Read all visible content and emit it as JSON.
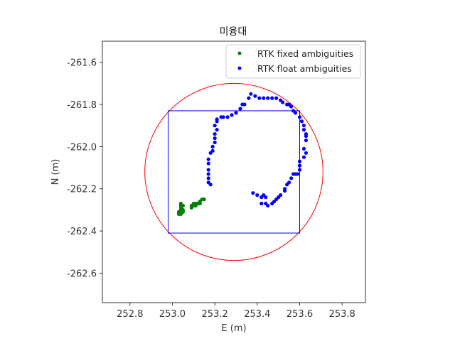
{
  "chart_data": {
    "type": "scatter",
    "title": "미융대",
    "xlabel": "E (m)",
    "ylabel": "N (m)",
    "xlim": [
      252.67,
      253.91
    ],
    "ylim": [
      -262.74,
      -261.5
    ],
    "xticks": [
      252.8,
      253.0,
      253.2,
      253.4,
      253.6,
      253.8
    ],
    "xtick_labels": [
      "252.8",
      "253.0",
      "253.2",
      "253.4",
      "253.6",
      "253.8"
    ],
    "yticks": [
      -261.6,
      -261.8,
      -262.0,
      -262.2,
      -262.4,
      -262.6
    ],
    "ytick_labels": [
      "-261.6",
      "-261.8",
      "-262.0",
      "-262.2",
      "-262.4",
      "-262.6"
    ],
    "grid": false,
    "legend_position": "top-right",
    "circle": {
      "center": [
        253.29,
        -262.12
      ],
      "radius": 0.42,
      "color": "#ff0000"
    },
    "rectangle": {
      "x": [
        252.98,
        253.6
      ],
      "y": [
        -262.41,
        -261.83
      ],
      "color": "#0000ff"
    },
    "series": [
      {
        "name": "RTK fixed ambiguities",
        "color": "#008000",
        "points": [
          [
            253.04,
            -262.27
          ],
          [
            253.04,
            -262.28
          ],
          [
            253.04,
            -262.29
          ],
          [
            253.05,
            -262.28
          ],
          [
            253.04,
            -262.3
          ],
          [
            253.04,
            -262.31
          ],
          [
            253.03,
            -262.32
          ],
          [
            253.04,
            -262.32
          ],
          [
            253.05,
            -262.31
          ],
          [
            253.03,
            -262.31
          ],
          [
            253.05,
            -262.3
          ],
          [
            253.09,
            -262.28
          ],
          [
            253.09,
            -262.29
          ],
          [
            253.1,
            -262.27
          ],
          [
            253.1,
            -262.28
          ],
          [
            253.11,
            -262.28
          ],
          [
            253.11,
            -262.27
          ],
          [
            253.12,
            -262.27
          ],
          [
            253.13,
            -262.27
          ],
          [
            253.13,
            -262.26
          ],
          [
            253.14,
            -262.25
          ],
          [
            253.15,
            -262.25
          ]
        ]
      },
      {
        "name": "RTK float ambiguities",
        "color": "#0000ff",
        "points": [
          [
            253.18,
            -262.18
          ],
          [
            253.17,
            -262.17
          ],
          [
            253.17,
            -262.15
          ],
          [
            253.17,
            -262.13
          ],
          [
            253.17,
            -262.11
          ],
          [
            253.17,
            -262.08
          ],
          [
            253.17,
            -262.06
          ],
          [
            253.18,
            -262.03
          ],
          [
            253.19,
            -262.02
          ],
          [
            253.19,
            -262.0
          ],
          [
            253.2,
            -261.98
          ],
          [
            253.2,
            -261.96
          ],
          [
            253.2,
            -261.94
          ],
          [
            253.21,
            -261.92
          ],
          [
            253.2,
            -261.9
          ],
          [
            253.21,
            -261.88
          ],
          [
            253.21,
            -261.87
          ],
          [
            253.23,
            -261.86
          ],
          [
            253.24,
            -261.86
          ],
          [
            253.26,
            -261.86
          ],
          [
            253.28,
            -261.85
          ],
          [
            253.3,
            -261.84
          ],
          [
            253.32,
            -261.82
          ],
          [
            253.33,
            -261.8
          ],
          [
            253.34,
            -261.8
          ],
          [
            253.36,
            -261.77
          ],
          [
            253.37,
            -261.75
          ],
          [
            253.39,
            -261.76
          ],
          [
            253.41,
            -261.77
          ],
          [
            253.43,
            -261.77
          ],
          [
            253.45,
            -261.77
          ],
          [
            253.47,
            -261.77
          ],
          [
            253.49,
            -261.77
          ],
          [
            253.51,
            -261.78
          ],
          [
            253.52,
            -261.79
          ],
          [
            253.54,
            -261.8
          ],
          [
            253.55,
            -261.8
          ],
          [
            253.56,
            -261.81
          ],
          [
            253.57,
            -261.83
          ],
          [
            253.58,
            -261.84
          ],
          [
            253.6,
            -261.86
          ],
          [
            253.61,
            -261.88
          ],
          [
            253.62,
            -261.9
          ],
          [
            253.62,
            -261.92
          ],
          [
            253.63,
            -261.94
          ],
          [
            253.63,
            -261.95
          ],
          [
            253.63,
            -261.97
          ],
          [
            253.62,
            -262.01
          ],
          [
            253.63,
            -262.03
          ],
          [
            253.62,
            -262.05
          ],
          [
            253.6,
            -262.07
          ],
          [
            253.6,
            -262.09
          ],
          [
            253.6,
            -262.11
          ],
          [
            253.59,
            -262.13
          ],
          [
            253.58,
            -262.13
          ],
          [
            253.57,
            -262.13
          ],
          [
            253.56,
            -262.15
          ],
          [
            253.55,
            -262.17
          ],
          [
            253.54,
            -262.18
          ],
          [
            253.53,
            -262.2
          ],
          [
            253.53,
            -262.21
          ],
          [
            253.51,
            -262.23
          ],
          [
            253.5,
            -262.24
          ],
          [
            253.49,
            -262.25
          ],
          [
            253.48,
            -262.26
          ],
          [
            253.47,
            -262.27
          ],
          [
            253.45,
            -262.28
          ],
          [
            253.44,
            -262.27
          ],
          [
            253.42,
            -262.27
          ],
          [
            253.44,
            -262.24
          ],
          [
            253.43,
            -262.23
          ],
          [
            253.42,
            -262.24
          ],
          [
            253.4,
            -262.23
          ],
          [
            253.38,
            -262.22
          ]
        ]
      }
    ]
  }
}
